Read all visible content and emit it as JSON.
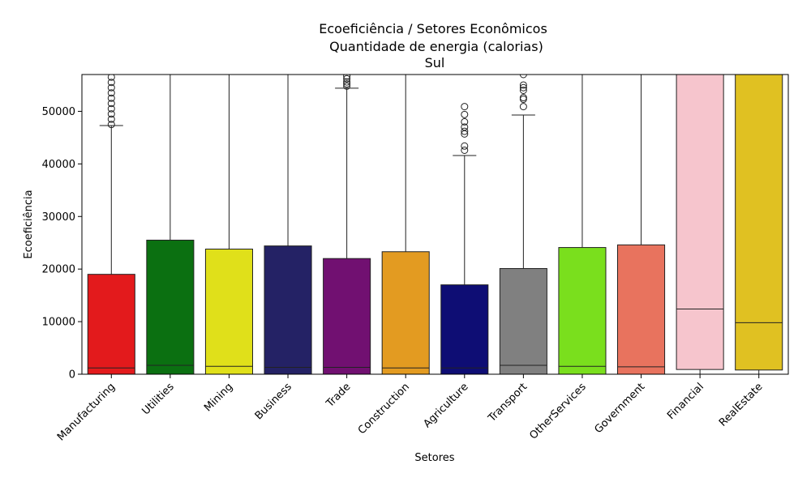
{
  "chart_data": {
    "type": "box",
    "title_lines": [
      "Ecoeficiência / Setores Econômicos",
      "Quantidade de energia (calorias)",
      "Sul"
    ],
    "xlabel": "Setores",
    "ylabel": "Ecoeficiência",
    "ylim": [
      0,
      57000
    ],
    "yticks": [
      0,
      10000,
      20000,
      30000,
      40000,
      50000
    ],
    "ytick_labels": [
      "0",
      "10000",
      "20000",
      "30000",
      "40000",
      "50000"
    ],
    "grid": false,
    "legend": "none",
    "categories": [
      "Manufacturing",
      "Utilities",
      "Mining",
      "Business",
      "Trade",
      "Construction",
      "Agriculture",
      "Transport",
      "OtherServices",
      "Government",
      "Financial",
      "RealEstate"
    ],
    "colors": [
      "#e31a1c",
      "#0b7011",
      "#e0e01a",
      "#242265",
      "#711071",
      "#e39b21",
      "#0e0d74",
      "#808080",
      "#7adf1d",
      "#e8735e",
      "#f6c5cd",
      "#e0c122"
    ],
    "boxes": [
      {
        "q1": 0,
        "median": 1200,
        "q3": 19000,
        "whisker_low": 0,
        "whisker_high": 47300,
        "outliers": [
          47500,
          48500,
          49500,
          50500,
          51500,
          52500,
          53500,
          54500,
          55500,
          56500
        ]
      },
      {
        "q1": 0,
        "median": 1700,
        "q3": 25500,
        "whisker_low": 0,
        "whisker_high": 57000,
        "outliers": []
      },
      {
        "q1": 0,
        "median": 1500,
        "q3": 23800,
        "whisker_low": 0,
        "whisker_high": 57000,
        "outliers": []
      },
      {
        "q1": 0,
        "median": 1300,
        "q3": 24400,
        "whisker_low": 0,
        "whisker_high": 57000,
        "outliers": []
      },
      {
        "q1": 0,
        "median": 1300,
        "q3": 22000,
        "whisker_low": 0,
        "whisker_high": 54400,
        "outliers": [
          54800,
          55200,
          55600,
          56200,
          56700
        ]
      },
      {
        "q1": 0,
        "median": 1200,
        "q3": 23300,
        "whisker_low": 0,
        "whisker_high": 57000,
        "outliers": []
      },
      {
        "q1": 0,
        "median": 1200,
        "q3": 17000,
        "whisker_low": 0,
        "whisker_high": 41600,
        "outliers": [
          42600,
          43400,
          45700,
          46200,
          47000,
          48000,
          49400,
          50900
        ]
      },
      {
        "q1": 0,
        "median": 1700,
        "q3": 20100,
        "whisker_low": 0,
        "whisker_high": 49300,
        "outliers": [
          50900,
          52300,
          52600,
          54000,
          54500,
          55000,
          57000
        ]
      },
      {
        "q1": 0,
        "median": 1500,
        "q3": 24100,
        "whisker_low": 0,
        "whisker_high": 57000,
        "outliers": []
      },
      {
        "q1": 0,
        "median": 1400,
        "q3": 24600,
        "whisker_low": 0,
        "whisker_high": 57000,
        "outliers": []
      },
      {
        "q1": 900,
        "median": 12400,
        "q3": 57000,
        "whisker_low": 0,
        "whisker_high": 57000,
        "outliers": []
      },
      {
        "q1": 800,
        "median": 9800,
        "q3": 57000,
        "whisker_low": 0,
        "whisker_high": 57000,
        "outliers": []
      }
    ]
  }
}
